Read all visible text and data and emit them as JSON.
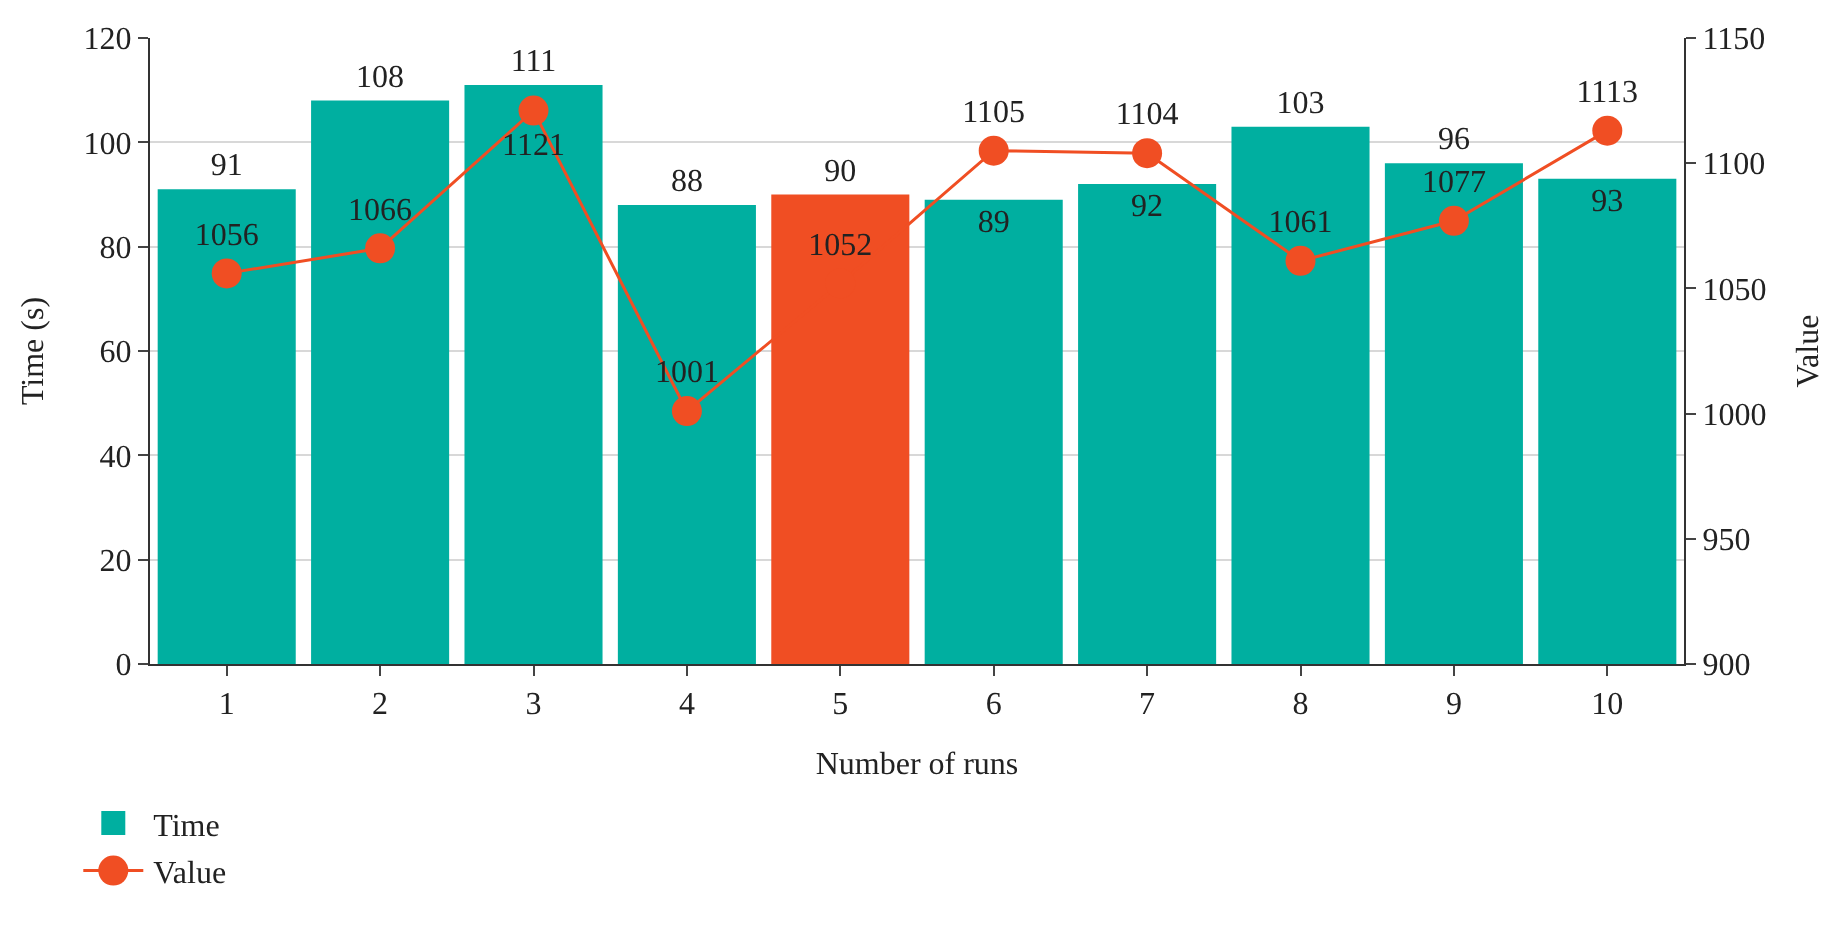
{
  "chart_data": {
    "type": "bar",
    "xlabel": "Number of runs",
    "ylabel": "Time (s)",
    "y2label": "Value",
    "categories": [
      "1",
      "2",
      "3",
      "4",
      "5",
      "6",
      "7",
      "8",
      "9",
      "10"
    ],
    "series": [
      {
        "name": "Time",
        "colors": [
          "#00afa0",
          "#00afa0",
          "#00afa0",
          "#00afa0",
          "#f04e23",
          "#00afa0",
          "#00afa0",
          "#00afa0",
          "#00afa0",
          "#00afa0"
        ],
        "values": [
          91,
          108,
          111,
          88,
          90,
          89,
          92,
          103,
          96,
          93
        ]
      },
      {
        "name": "Value",
        "type": "line",
        "axis": "y2",
        "color": "#f04e23",
        "values": [
          1056,
          1066,
          1121,
          1001,
          1052,
          1105,
          1104,
          1061,
          1077,
          1113
        ]
      }
    ],
    "ylim": [
      0,
      120
    ],
    "yticks": [
      0,
      20,
      40,
      60,
      80,
      100,
      120
    ],
    "y2lim": [
      900,
      1150
    ],
    "y2ticks": [
      900,
      950,
      1000,
      1050,
      1100,
      1150
    ],
    "grid": "y",
    "legend": "bottom left",
    "marker": "circle",
    "data_labels": true
  }
}
